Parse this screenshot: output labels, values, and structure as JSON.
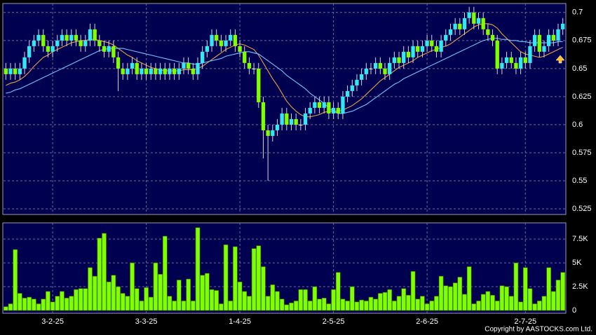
{
  "chart_data": {
    "type": "candlestick",
    "footer": "Copyright by AASTOCKS.com Ltd.",
    "up_color": "#33e8f2",
    "down_color": "#80ff00",
    "flat_color": "#ffffff",
    "xlim": [
      -0.5,
      119.5
    ],
    "xticks": [
      {
        "value": 10,
        "label": "3-2-25"
      },
      {
        "value": 30,
        "label": "3-3-25"
      },
      {
        "value": 50,
        "label": "1-4-25"
      },
      {
        "value": 70,
        "label": "2-5-25"
      },
      {
        "value": 90,
        "label": "2-6-25"
      },
      {
        "value": 111,
        "label": "2-7-25"
      }
    ],
    "ylim": [
      0.52,
      0.708
    ],
    "yticks": [
      0.525,
      0.55,
      0.575,
      0.6,
      0.625,
      0.65,
      0.675,
      0.7
    ],
    "grid": true,
    "open": [
      0.65,
      0.645,
      0.65,
      0.645,
      0.65,
      0.66,
      0.67,
      0.675,
      0.68,
      0.67,
      0.665,
      0.67,
      0.675,
      0.68,
      0.675,
      0.68,
      0.675,
      0.67,
      0.675,
      0.685,
      0.675,
      0.67,
      0.665,
      0.67,
      0.66,
      0.65,
      0.645,
      0.65,
      0.655,
      0.645,
      0.65,
      0.645,
      0.65,
      0.645,
      0.65,
      0.645,
      0.65,
      0.645,
      0.65,
      0.655,
      0.65,
      0.645,
      0.655,
      0.665,
      0.67,
      0.68,
      0.675,
      0.67,
      0.675,
      0.68,
      0.67,
      0.665,
      0.655,
      0.65,
      0.65,
      0.62,
      0.595,
      0.59,
      0.595,
      0.6,
      0.61,
      0.6,
      0.605,
      0.6,
      0.6,
      0.61,
      0.615,
      0.62,
      0.615,
      0.62,
      0.61,
      0.615,
      0.61,
      0.625,
      0.63,
      0.635,
      0.64,
      0.645,
      0.65,
      0.65,
      0.655,
      0.65,
      0.645,
      0.655,
      0.66,
      0.655,
      0.665,
      0.66,
      0.67,
      0.665,
      0.67,
      0.675,
      0.67,
      0.665,
      0.675,
      0.68,
      0.685,
      0.69,
      0.685,
      0.695,
      0.7,
      0.69,
      0.695,
      0.685,
      0.68,
      0.675,
      0.65,
      0.655,
      0.66,
      0.655,
      0.65,
      0.66,
      0.655,
      0.67,
      0.68,
      0.665,
      0.67,
      0.68,
      0.675,
      0.685
    ],
    "high": [
      0.655,
      0.655,
      0.655,
      0.655,
      0.665,
      0.675,
      0.68,
      0.685,
      0.685,
      0.675,
      0.675,
      0.68,
      0.685,
      0.685,
      0.685,
      0.685,
      0.68,
      0.68,
      0.69,
      0.69,
      0.68,
      0.675,
      0.675,
      0.675,
      0.665,
      0.655,
      0.655,
      0.66,
      0.66,
      0.655,
      0.655,
      0.655,
      0.655,
      0.655,
      0.655,
      0.655,
      0.655,
      0.655,
      0.66,
      0.66,
      0.655,
      0.66,
      0.67,
      0.675,
      0.685,
      0.685,
      0.68,
      0.68,
      0.685,
      0.685,
      0.675,
      0.67,
      0.66,
      0.655,
      0.655,
      0.625,
      0.6,
      0.6,
      0.605,
      0.615,
      0.615,
      0.61,
      0.61,
      0.605,
      0.615,
      0.62,
      0.625,
      0.625,
      0.625,
      0.625,
      0.62,
      0.62,
      0.63,
      0.635,
      0.64,
      0.645,
      0.65,
      0.655,
      0.655,
      0.66,
      0.66,
      0.655,
      0.66,
      0.665,
      0.665,
      0.67,
      0.67,
      0.675,
      0.675,
      0.675,
      0.68,
      0.68,
      0.675,
      0.68,
      0.685,
      0.69,
      0.695,
      0.695,
      0.7,
      0.705,
      0.705,
      0.7,
      0.7,
      0.69,
      0.685,
      0.68,
      0.66,
      0.665,
      0.665,
      0.66,
      0.665,
      0.665,
      0.675,
      0.685,
      0.685,
      0.675,
      0.685,
      0.685,
      0.69,
      0.695
    ],
    "low": [
      0.64,
      0.64,
      0.64,
      0.64,
      0.645,
      0.655,
      0.665,
      0.67,
      0.665,
      0.66,
      0.66,
      0.665,
      0.67,
      0.67,
      0.67,
      0.67,
      0.665,
      0.665,
      0.67,
      0.67,
      0.665,
      0.66,
      0.66,
      0.655,
      0.63,
      0.64,
      0.64,
      0.645,
      0.64,
      0.64,
      0.64,
      0.64,
      0.64,
      0.64,
      0.64,
      0.64,
      0.64,
      0.64,
      0.645,
      0.645,
      0.64,
      0.64,
      0.65,
      0.66,
      0.665,
      0.67,
      0.665,
      0.665,
      0.67,
      0.665,
      0.66,
      0.65,
      0.645,
      0.645,
      0.615,
      0.57,
      0.55,
      0.585,
      0.59,
      0.595,
      0.595,
      0.595,
      0.595,
      0.595,
      0.595,
      0.605,
      0.61,
      0.61,
      0.61,
      0.605,
      0.605,
      0.605,
      0.605,
      0.62,
      0.625,
      0.63,
      0.635,
      0.64,
      0.645,
      0.645,
      0.645,
      0.64,
      0.64,
      0.65,
      0.65,
      0.65,
      0.655,
      0.655,
      0.66,
      0.66,
      0.665,
      0.665,
      0.66,
      0.66,
      0.67,
      0.675,
      0.68,
      0.68,
      0.68,
      0.69,
      0.685,
      0.685,
      0.68,
      0.675,
      0.67,
      0.645,
      0.645,
      0.65,
      0.65,
      0.645,
      0.645,
      0.65,
      0.65,
      0.665,
      0.66,
      0.66,
      0.665,
      0.67,
      0.67,
      0.68
    ],
    "close": [
      0.645,
      0.65,
      0.645,
      0.65,
      0.66,
      0.67,
      0.675,
      0.68,
      0.67,
      0.665,
      0.67,
      0.675,
      0.68,
      0.675,
      0.68,
      0.675,
      0.67,
      0.675,
      0.685,
      0.675,
      0.67,
      0.665,
      0.67,
      0.66,
      0.65,
      0.645,
      0.65,
      0.655,
      0.645,
      0.65,
      0.645,
      0.65,
      0.645,
      0.65,
      0.645,
      0.65,
      0.645,
      0.65,
      0.655,
      0.65,
      0.645,
      0.655,
      0.665,
      0.67,
      0.68,
      0.675,
      0.67,
      0.675,
      0.68,
      0.67,
      0.665,
      0.655,
      0.65,
      0.65,
      0.62,
      0.595,
      0.59,
      0.595,
      0.6,
      0.61,
      0.6,
      0.605,
      0.6,
      0.6,
      0.61,
      0.615,
      0.62,
      0.615,
      0.62,
      0.61,
      0.615,
      0.61,
      0.625,
      0.63,
      0.635,
      0.64,
      0.645,
      0.65,
      0.65,
      0.655,
      0.65,
      0.645,
      0.655,
      0.66,
      0.655,
      0.665,
      0.66,
      0.67,
      0.665,
      0.67,
      0.675,
      0.67,
      0.665,
      0.675,
      0.68,
      0.685,
      0.69,
      0.685,
      0.695,
      0.7,
      0.69,
      0.695,
      0.685,
      0.68,
      0.675,
      0.65,
      0.655,
      0.66,
      0.655,
      0.65,
      0.66,
      0.655,
      0.67,
      0.68,
      0.665,
      0.67,
      0.68,
      0.675,
      0.685,
      0.69
    ],
    "ma": [
      {
        "color": "#f0a040",
        "values": [
          0.635,
          0.637,
          0.638,
          0.64,
          0.643,
          0.647,
          0.652,
          0.656,
          0.66,
          0.662,
          0.665,
          0.667,
          0.669,
          0.671,
          0.673,
          0.674,
          0.675,
          0.675,
          0.676,
          0.676,
          0.675,
          0.674,
          0.673,
          0.671,
          0.668,
          0.665,
          0.662,
          0.66,
          0.657,
          0.655,
          0.653,
          0.651,
          0.65,
          0.649,
          0.648,
          0.648,
          0.648,
          0.648,
          0.649,
          0.649,
          0.649,
          0.65,
          0.652,
          0.655,
          0.658,
          0.661,
          0.664,
          0.667,
          0.669,
          0.671,
          0.672,
          0.671,
          0.669,
          0.667,
          0.662,
          0.655,
          0.648,
          0.641,
          0.635,
          0.628,
          0.621,
          0.616,
          0.612,
          0.609,
          0.607,
          0.607,
          0.608,
          0.609,
          0.611,
          0.612,
          0.612,
          0.612,
          0.613,
          0.615,
          0.617,
          0.62,
          0.623,
          0.627,
          0.631,
          0.635,
          0.639,
          0.642,
          0.645,
          0.648,
          0.651,
          0.653,
          0.655,
          0.657,
          0.66,
          0.662,
          0.664,
          0.666,
          0.667,
          0.669,
          0.67,
          0.672,
          0.675,
          0.678,
          0.681,
          0.684,
          0.687,
          0.689,
          0.69,
          0.69,
          0.689,
          0.686,
          0.681,
          0.677,
          0.673,
          0.669,
          0.665,
          0.663,
          0.662,
          0.661,
          0.66,
          0.661,
          0.663,
          0.665,
          0.667,
          0.669
        ]
      },
      {
        "color": "#6ec6ff",
        "values": [
          0.628,
          0.629,
          0.631,
          0.632,
          0.634,
          0.636,
          0.638,
          0.64,
          0.642,
          0.644,
          0.646,
          0.648,
          0.65,
          0.652,
          0.654,
          0.656,
          0.658,
          0.66,
          0.662,
          0.664,
          0.666,
          0.667,
          0.668,
          0.668,
          0.668,
          0.668,
          0.667,
          0.666,
          0.665,
          0.664,
          0.663,
          0.662,
          0.661,
          0.66,
          0.659,
          0.658,
          0.657,
          0.656,
          0.655,
          0.655,
          0.654,
          0.654,
          0.655,
          0.656,
          0.657,
          0.658,
          0.659,
          0.661,
          0.662,
          0.663,
          0.664,
          0.665,
          0.665,
          0.664,
          0.663,
          0.66,
          0.657,
          0.654,
          0.651,
          0.648,
          0.644,
          0.641,
          0.638,
          0.635,
          0.632,
          0.628,
          0.625,
          0.622,
          0.619,
          0.615,
          0.612,
          0.61,
          0.61,
          0.611,
          0.612,
          0.614,
          0.616,
          0.618,
          0.621,
          0.624,
          0.627,
          0.63,
          0.633,
          0.636,
          0.638,
          0.641,
          0.643,
          0.645,
          0.647,
          0.649,
          0.651,
          0.653,
          0.655,
          0.657,
          0.659,
          0.661,
          0.663,
          0.665,
          0.667,
          0.669,
          0.671,
          0.673,
          0.675,
          0.676,
          0.677,
          0.677,
          0.676,
          0.676,
          0.675,
          0.675,
          0.674,
          0.674,
          0.673,
          0.673,
          0.673,
          0.673,
          0.673,
          0.673,
          0.674,
          0.674
        ]
      }
    ],
    "volume": {
      "color": "#80ff00",
      "ylim": [
        0,
        9200
      ],
      "yticks": [
        0,
        {
          "value": 2500,
          "label": "2.5K"
        },
        {
          "value": 5000,
          "label": "5K"
        },
        {
          "value": 7500,
          "label": "7.5K"
        }
      ],
      "values": [
        400,
        700,
        6400,
        1800,
        1300,
        1400,
        1200,
        700,
        1200,
        2000,
        900,
        1500,
        2000,
        1300,
        1500,
        2200,
        2300,
        2300,
        4500,
        3600,
        7600,
        8100,
        3000,
        3700,
        2500,
        1800,
        1500,
        5000,
        2300,
        1000,
        2400,
        1400,
        5000,
        3800,
        7800,
        1500,
        1000,
        3200,
        1000,
        3300,
        1000,
        8700,
        3700,
        3900,
        2200,
        2100,
        700,
        6900,
        1000,
        6700,
        3000,
        2000,
        1500,
        6500,
        6800,
        4600,
        1500,
        2700,
        2000,
        1200,
        600,
        800,
        1000,
        2200,
        2200,
        1000,
        2500,
        1200,
        1300,
        700,
        2200,
        4000,
        1200,
        1000,
        2500,
        900,
        1100,
        1000,
        1400,
        1200,
        1800,
        1900,
        2200,
        1000,
        1500,
        2300,
        1600,
        4100,
        1200,
        1500,
        700,
        1000,
        1500,
        3600,
        2600,
        2500,
        2900,
        3500,
        1700,
        4600,
        700,
        1000,
        1700,
        2000,
        1600,
        1000,
        2600,
        2500,
        1500,
        5000,
        900,
        4500,
        2300,
        700,
        1000,
        1500,
        4500,
        2000,
        3200,
        4000
      ]
    }
  }
}
